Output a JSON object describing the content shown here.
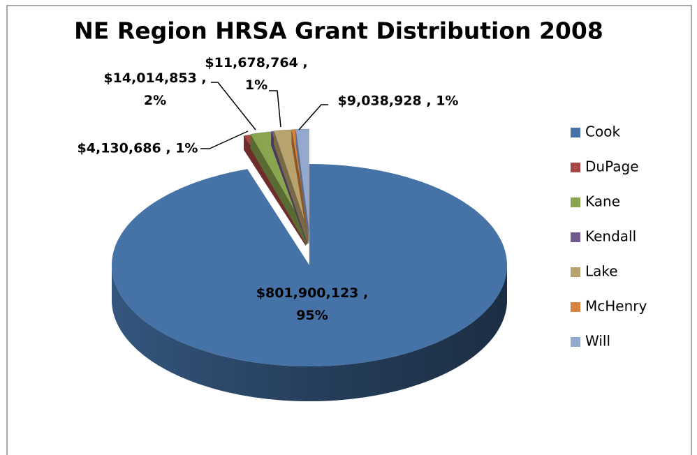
{
  "chart_data": {
    "type": "pie",
    "title": "NE Region HRSA Grant Distribution 2008",
    "categories": [
      "Cook",
      "DuPage",
      "Kane",
      "Kendall",
      "Lake",
      "McHenry",
      "Will"
    ],
    "values": [
      801900123,
      4130686,
      14014853,
      1500000,
      11678764,
      2500000,
      9038928
    ],
    "value_labels": [
      "$801,900,123 , 95%",
      "$4,130,686 , 1%",
      "$14,014,853 , 2%",
      null,
      "$11,678,764 , 1%",
      null,
      "$9,038,928 , 1%"
    ],
    "colors": [
      "#4572a7",
      "#aa4643",
      "#89a54e",
      "#71588f",
      "#b8a26e",
      "#db843d",
      "#93a9cf"
    ],
    "legend": "right"
  }
}
